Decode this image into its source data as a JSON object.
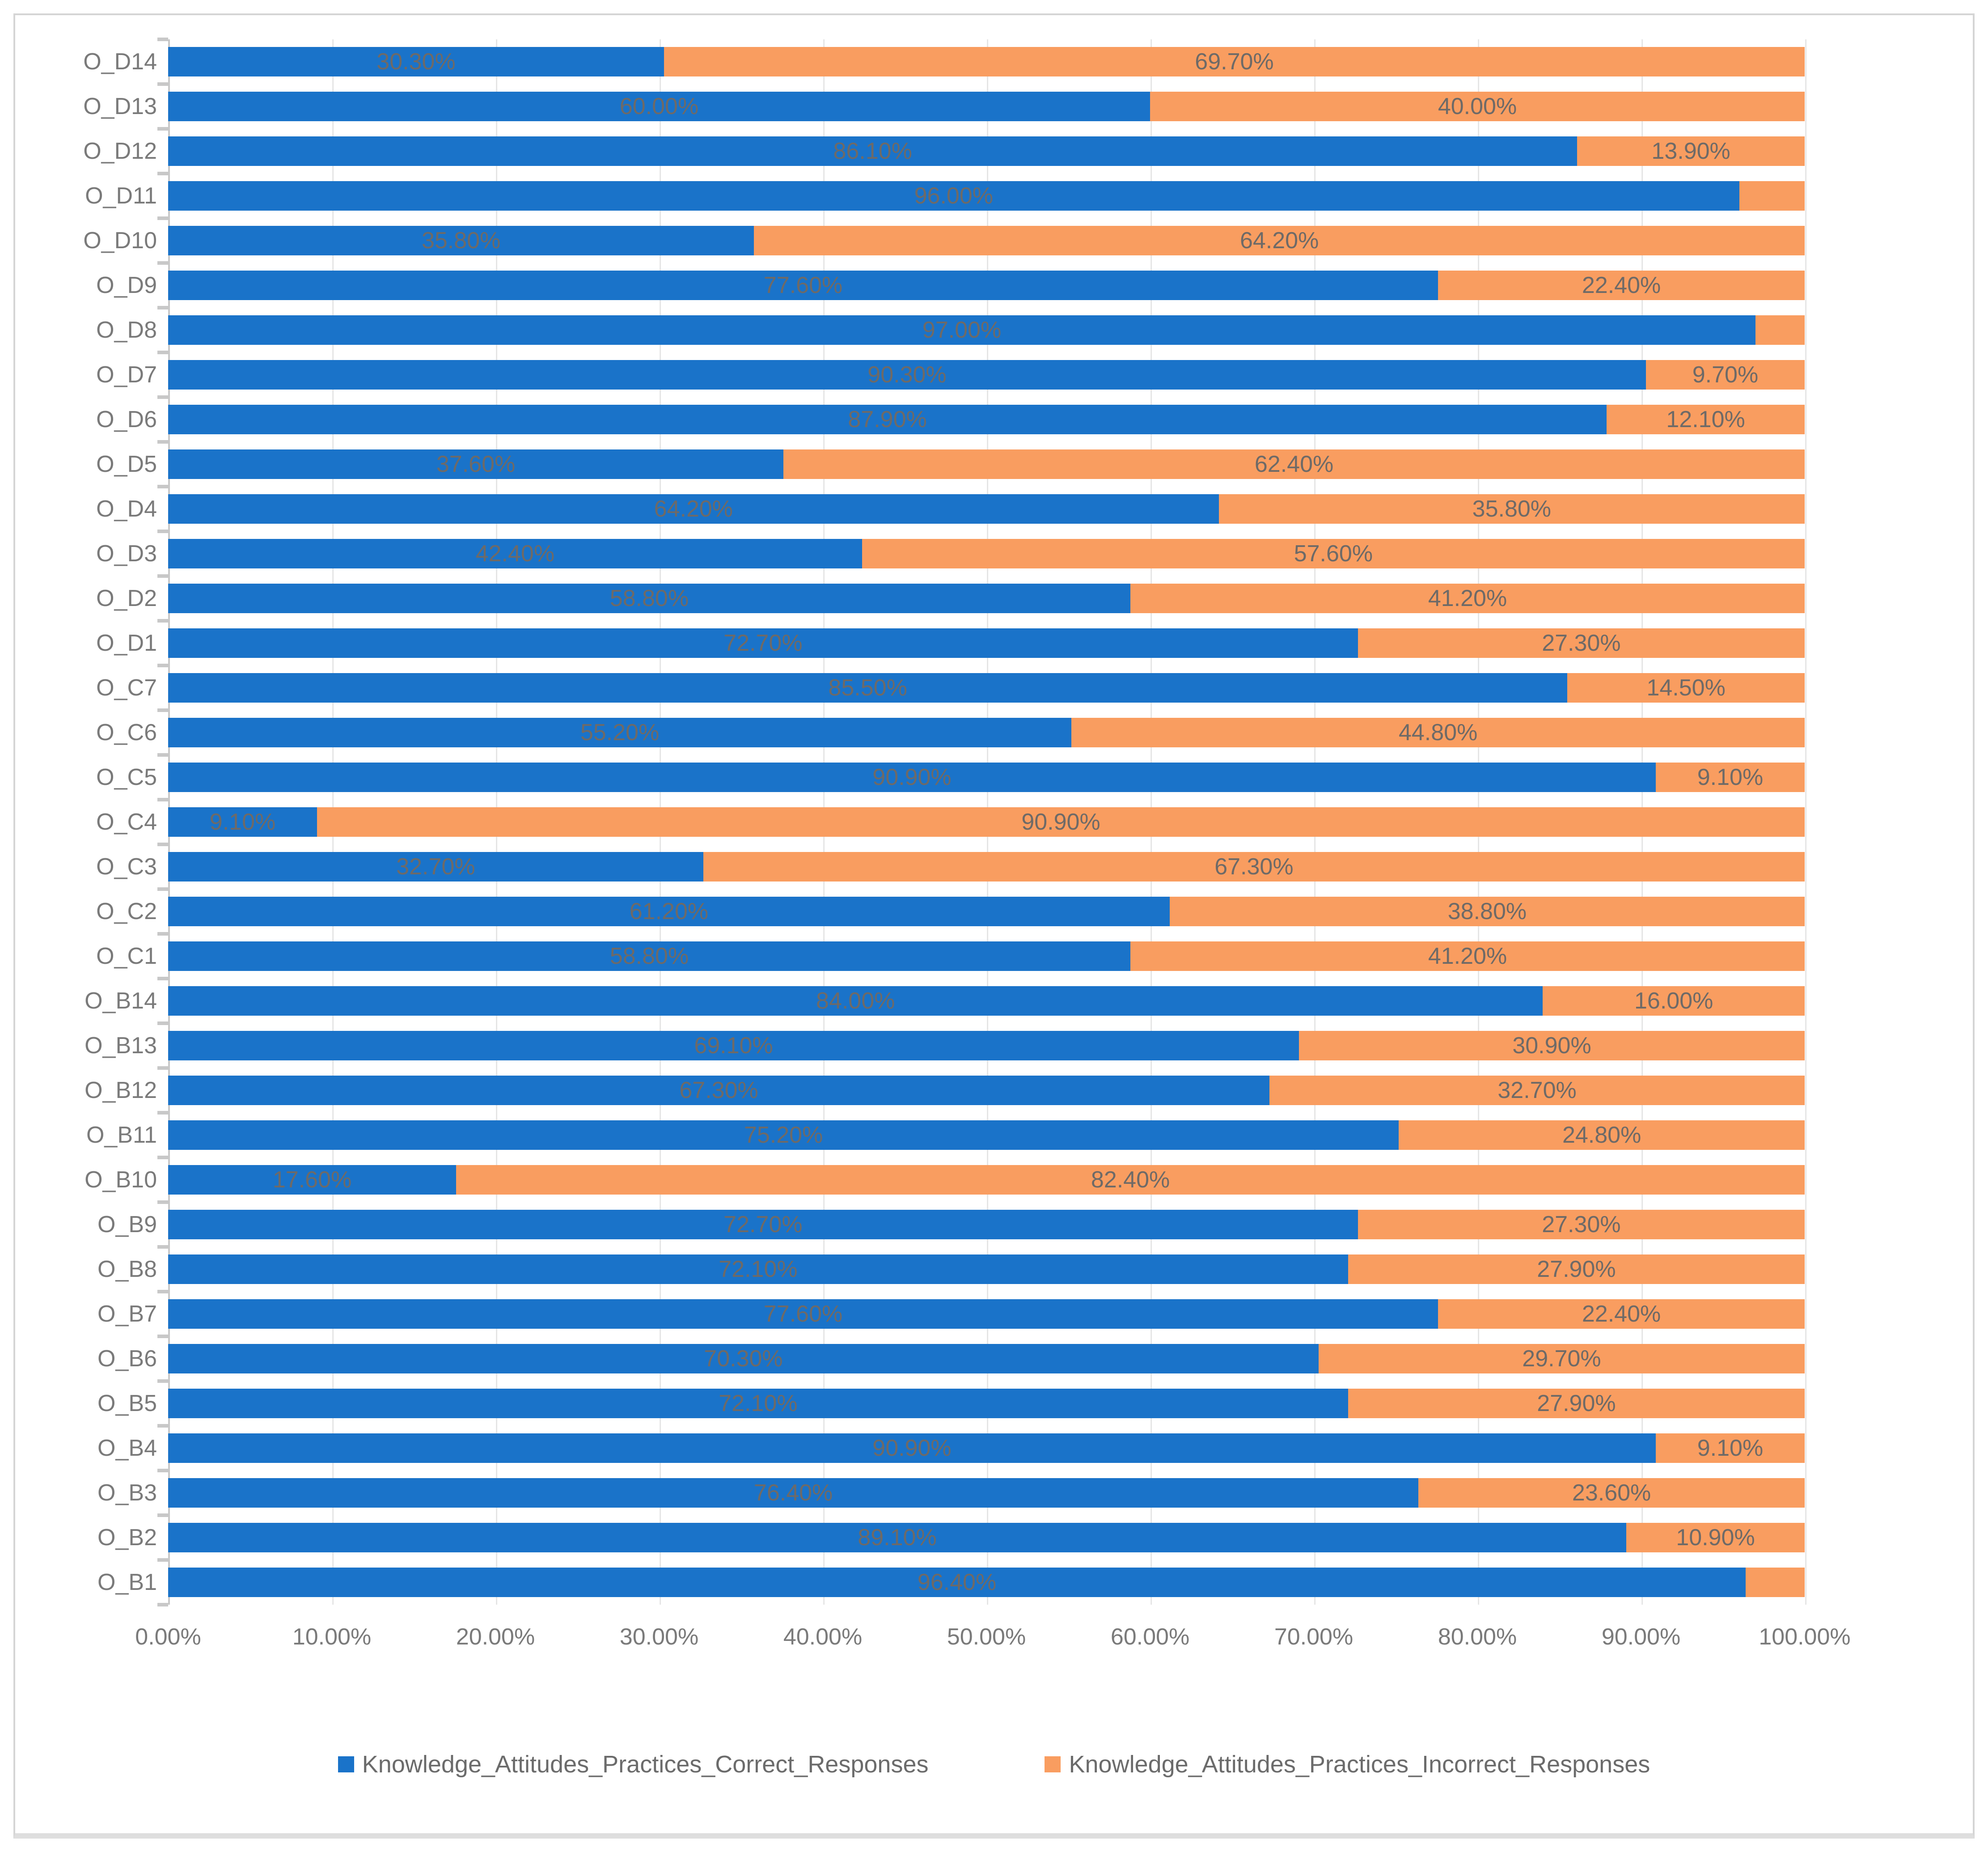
{
  "legend": {
    "items": [
      {
        "label": "Knowledge_Attitudes_Practices_Correct_Responses",
        "color": "#1a73c9"
      },
      {
        "label": "Knowledge_Attitudes_Practices_Incorrect_Responses",
        "color": "#f99d60"
      }
    ]
  },
  "axis": {
    "x_ticks": [
      "0.00%",
      "10.00%",
      "20.00%",
      "30.00%",
      "40.00%",
      "50.00%",
      "60.00%",
      "70.00%",
      "80.00%",
      "90.00%",
      "100.00%"
    ]
  },
  "colors": {
    "correct": "#1a73c9",
    "incorrect": "#f99d60",
    "gridline": "#e3e3e3",
    "axis_line": "#c8c8c8",
    "data_label": "#6e6a67",
    "axis_text": "#7a7a7a"
  },
  "chart_data": {
    "type": "bar",
    "orientation": "horizontal-stacked",
    "title": "",
    "xlabel": "",
    "ylabel": "",
    "xlim": [
      0,
      100
    ],
    "grid": true,
    "legend_position": "bottom",
    "categories": [
      "O_D14",
      "O_D13",
      "O_D12",
      "O_D11",
      "O_D10",
      "O_D9",
      "O_D8",
      "O_D7",
      "O_D6",
      "O_D5",
      "O_D4",
      "O_D3",
      "O_D2",
      "O_D1",
      "O_C7",
      "O_C6",
      "O_C5",
      "O_C4",
      "O_C3",
      "O_C2",
      "O_C1",
      "O_B14",
      "O_B13",
      "O_B12",
      "O_B11",
      "O_B10",
      "O_B9",
      "O_B8",
      "O_B7",
      "O_B6",
      "O_B5",
      "O_B4",
      "O_B3",
      "O_B2",
      "O_B1"
    ],
    "series": [
      {
        "name": "Knowledge_Attitudes_Practices_Correct_Responses",
        "color": "#1a73c9",
        "values": [
          30.3,
          60.0,
          86.1,
          96.0,
          35.8,
          77.6,
          97.0,
          90.3,
          87.9,
          37.6,
          64.2,
          42.4,
          58.8,
          72.7,
          85.5,
          55.2,
          90.9,
          9.1,
          32.7,
          61.2,
          58.8,
          84.0,
          69.1,
          67.3,
          75.2,
          17.6,
          72.7,
          72.1,
          77.6,
          70.3,
          72.1,
          90.9,
          76.4,
          89.1,
          96.4
        ],
        "labels": [
          "30.30%",
          "60.00%",
          "86.10%",
          "96.00%",
          "35.80%",
          "77.60%",
          "97.00%",
          "90.30%",
          "87.90%",
          "37.60%",
          "64.20%",
          "42.40%",
          "58.80%",
          "72.70%",
          "85.50%",
          "55.20%",
          "90.90%",
          "9.10%",
          "32.70%",
          "61.20%",
          "58.80%",
          "84.00%",
          "69.10%",
          "67.30%",
          "75.20%",
          "17.60%",
          "72.70%",
          "72.10%",
          "77.60%",
          "70.30%",
          "72.10%",
          "90.90%",
          "76.40%",
          "89.10%",
          "96.40%"
        ]
      },
      {
        "name": "Knowledge_Attitudes_Practices_Incorrect_Responses",
        "color": "#f99d60",
        "values": [
          69.7,
          40.0,
          13.9,
          4.0,
          64.2,
          22.4,
          3.0,
          9.7,
          12.1,
          62.4,
          35.8,
          57.6,
          41.2,
          27.3,
          14.5,
          44.8,
          9.1,
          90.9,
          67.3,
          38.8,
          41.2,
          16.0,
          30.9,
          32.7,
          24.8,
          82.4,
          27.3,
          27.9,
          22.4,
          29.7,
          27.9,
          9.1,
          23.6,
          10.9,
          3.6
        ],
        "labels": [
          "69.70%",
          "40.00%",
          "13.90%",
          "",
          "64.20%",
          "22.40%",
          "",
          "9.70%",
          "12.10%",
          "62.40%",
          "35.80%",
          "57.60%",
          "41.20%",
          "27.30%",
          "14.50%",
          "44.80%",
          "9.10%",
          "90.90%",
          "67.30%",
          "38.80%",
          "41.20%",
          "16.00%",
          "30.90%",
          "32.70%",
          "24.80%",
          "82.40%",
          "27.30%",
          "27.90%",
          "22.40%",
          "29.70%",
          "27.90%",
          "9.10%",
          "23.60%",
          "10.90%",
          ""
        ]
      }
    ]
  }
}
